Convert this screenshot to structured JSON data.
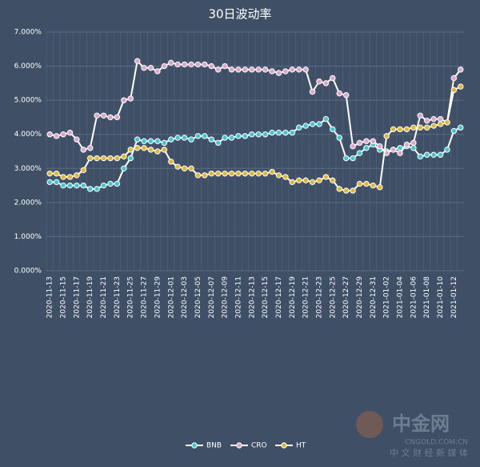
{
  "chart_data": {
    "type": "line",
    "title": "30日波动率",
    "categories": [
      "2020-11-13",
      null,
      "2020-11-15",
      null,
      "2020-11-17",
      null,
      "2020-11-19",
      null,
      "2020-11-21",
      null,
      "2020-11-23",
      null,
      "2020-11-25",
      null,
      "2020-11-27",
      null,
      "2020-11-29",
      null,
      "2020-12-01",
      null,
      "2020-12-03",
      null,
      "2020-12-05",
      null,
      "2020-12-07",
      null,
      "2020-12-09",
      null,
      "2020-12-11",
      null,
      "2020-12-13",
      null,
      "2020-12-15",
      null,
      "2020-12-17",
      null,
      "2020-12-19",
      null,
      "2020-12-21",
      null,
      "2020-12-23",
      null,
      "2020-12-25",
      null,
      "2020-12-27",
      null,
      "2020-12-29",
      null,
      "2020-12-31",
      null,
      "2021-01-02",
      null,
      "2021-01-04",
      null,
      "2021-01-06",
      null,
      "2021-01-08",
      null,
      "2021-01-10",
      null,
      "2021-01-12",
      null
    ],
    "series": [
      {
        "name": "BNB",
        "color": "#3ec8d2",
        "values": [
          2.6,
          2.6,
          2.5,
          2.5,
          2.5,
          2.5,
          2.4,
          2.4,
          2.5,
          2.55,
          2.55,
          3.0,
          3.3,
          3.85,
          3.8,
          3.8,
          3.8,
          3.75,
          3.85,
          3.9,
          3.9,
          3.85,
          3.95,
          3.95,
          3.85,
          3.75,
          3.9,
          3.9,
          3.95,
          3.95,
          4.0,
          4.0,
          4.0,
          4.05,
          4.05,
          4.05,
          4.05,
          4.2,
          4.25,
          4.3,
          4.3,
          4.45,
          4.15,
          3.9,
          3.3,
          3.3,
          3.45,
          3.6,
          3.7,
          3.55,
          3.5,
          3.55,
          3.6,
          3.65,
          3.6,
          3.35,
          3.4,
          3.4,
          3.4,
          3.55,
          4.1,
          4.2
        ]
      },
      {
        "name": "CRO",
        "color": "#dca5cb",
        "values": [
          4.0,
          3.95,
          4.0,
          4.05,
          3.85,
          3.55,
          3.6,
          4.55,
          4.55,
          4.5,
          4.5,
          5.0,
          5.05,
          6.15,
          5.95,
          5.95,
          5.85,
          6.0,
          6.1,
          6.05,
          6.05,
          6.05,
          6.05,
          6.05,
          6.0,
          5.9,
          6.0,
          5.9,
          5.9,
          5.9,
          5.9,
          5.9,
          5.9,
          5.85,
          5.8,
          5.85,
          5.9,
          5.9,
          5.9,
          5.25,
          5.55,
          5.5,
          5.65,
          5.2,
          5.15,
          3.65,
          3.75,
          3.8,
          3.8,
          3.65,
          3.45,
          3.55,
          3.45,
          3.7,
          3.75,
          4.55,
          4.4,
          4.45,
          4.45,
          4.35,
          5.65,
          5.9
        ]
      },
      {
        "name": "HT",
        "color": "#e3b62c",
        "values": [
          2.85,
          2.85,
          2.75,
          2.75,
          2.8,
          2.95,
          3.3,
          3.3,
          3.3,
          3.3,
          3.3,
          3.35,
          3.55,
          3.6,
          3.6,
          3.55,
          3.5,
          3.55,
          3.2,
          3.05,
          3.0,
          3.0,
          2.8,
          2.8,
          2.85,
          2.85,
          2.85,
          2.85,
          2.85,
          2.85,
          2.85,
          2.85,
          2.85,
          2.9,
          2.8,
          2.75,
          2.6,
          2.65,
          2.65,
          2.6,
          2.65,
          2.75,
          2.65,
          2.4,
          2.35,
          2.35,
          2.55,
          2.55,
          2.5,
          2.45,
          3.95,
          4.15,
          4.15,
          4.15,
          4.2,
          4.2,
          4.2,
          4.25,
          4.3,
          4.35,
          5.3,
          5.4
        ]
      }
    ],
    "ylim": [
      0,
      7
    ],
    "yticks": [
      {
        "value": 0,
        "label": "0.000%"
      },
      {
        "value": 1,
        "label": "1.000%"
      },
      {
        "value": 2,
        "label": "2.000%"
      },
      {
        "value": 3,
        "label": "3.000%"
      },
      {
        "value": 4,
        "label": "4.000%"
      },
      {
        "value": 5,
        "label": "5.000%"
      },
      {
        "value": 6,
        "label": "6.000%"
      },
      {
        "value": 7,
        "label": "7.000%"
      }
    ],
    "grid": true,
    "legend": "bottom"
  },
  "watermark": {
    "name": "中金网",
    "site": "CNGOLD.COM.CN",
    "slogan": "中 文 财 经 新 媒 体"
  }
}
